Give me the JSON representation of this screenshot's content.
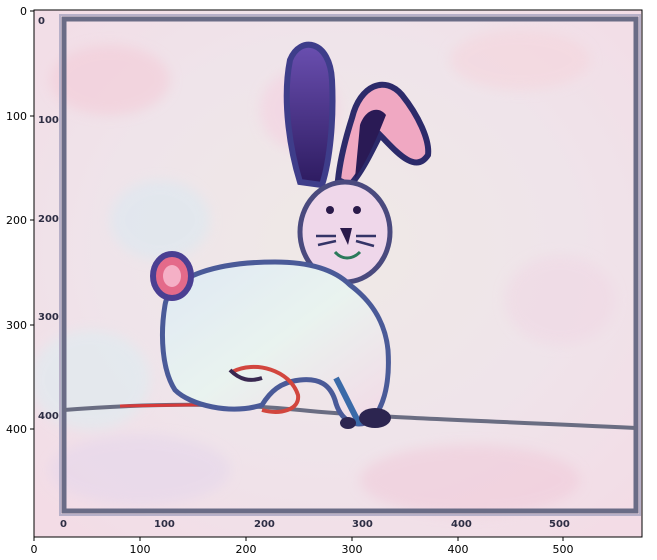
{
  "plot": {
    "x_ticks": [
      "0",
      "100",
      "200",
      "300",
      "400",
      "500"
    ],
    "y_ticks": [
      "0",
      "100",
      "200",
      "300",
      "400"
    ]
  },
  "image": {
    "embedded_scale_x": [
      "0",
      "100",
      "200",
      "300",
      "400",
      "500"
    ],
    "embedded_scale_y": [
      "0",
      "100",
      "200",
      "300",
      "400"
    ]
  }
}
